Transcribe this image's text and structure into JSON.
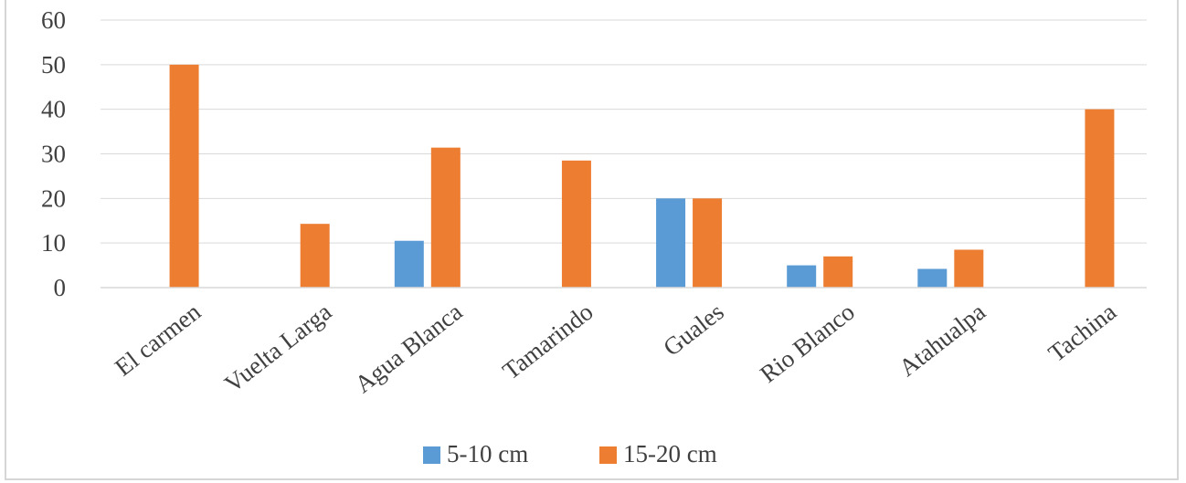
{
  "chart_data": {
    "type": "bar",
    "categories": [
      "El carmen",
      "Vuelta Larga",
      "Agua Blanca",
      "Tamarindo",
      "Guales",
      "Rio Blanco",
      "Atahualpa",
      "Tachina"
    ],
    "series": [
      {
        "name": "5-10 cm",
        "color": "#5b9bd5",
        "values": [
          0,
          0,
          10.5,
          0,
          20,
          5,
          4.2,
          0
        ]
      },
      {
        "name": "15-20 cm",
        "color": "#ed7d31",
        "values": [
          50,
          14.3,
          31.4,
          28.5,
          20,
          7,
          8.5,
          40
        ]
      }
    ],
    "yticks": [
      0,
      10,
      20,
      30,
      40,
      50,
      60
    ],
    "ylim": [
      0,
      60
    ],
    "grid": true,
    "legend_position": "bottom"
  }
}
